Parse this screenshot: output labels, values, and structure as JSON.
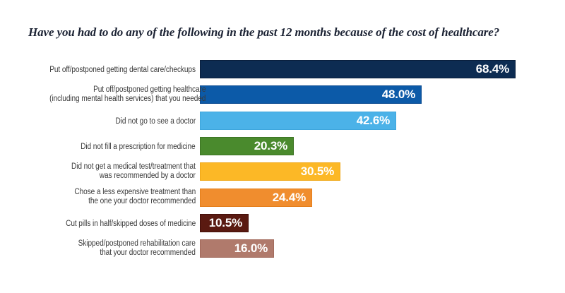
{
  "page": {
    "background": "#ffffff"
  },
  "chart_data": {
    "type": "bar",
    "orientation": "horizontal",
    "title": "Have you had to do any of the following in the past 12 months because of the cost of healthcare?",
    "title_color": "#1b2233",
    "xlabel": "",
    "ylabel": "",
    "xlim": [
      0,
      70
    ],
    "grid": false,
    "legend": "none",
    "axes_visible": false,
    "value_labels_position": "inside-end",
    "value_label_color": "#ffffff",
    "category_label_color": "#3a3a3a",
    "categories": [
      "Put off/postponed getting dental care/checkups",
      "Put off/postponed getting healthcare\n(including mental health services) that you needed",
      "Did not go to see a doctor",
      "Did not fill a prescription for medicine",
      "Did not get a medical test/treatment that\nwas recommended by a doctor",
      "Chose a less expensive treatment than\nthe one your doctor recommended",
      "Cut pills in half/skipped doses of medicine",
      "Skipped/postponed rehabilitation care\nthat your doctor recommended"
    ],
    "values": [
      68.4,
      48.0,
      42.6,
      20.3,
      30.5,
      24.4,
      10.5,
      16.0
    ],
    "value_labels": [
      "68.4%",
      "48.0%",
      "42.6%",
      "20.3%",
      "30.5%",
      "24.4%",
      "10.5%",
      "16.0%"
    ],
    "bar_colors": [
      "#0d2c52",
      "#0c5aa8",
      "#4bb2e8",
      "#4a8a2d",
      "#fcb826",
      "#f08d2e",
      "#5a1a11",
      "#b07a6c"
    ],
    "bar_border_colors": [
      "#091f3c",
      "#094a90",
      "#3ea6dd",
      "#3c7423",
      "#f0a818",
      "#e57f1c",
      "#430f09",
      "#a26a5c"
    ]
  }
}
